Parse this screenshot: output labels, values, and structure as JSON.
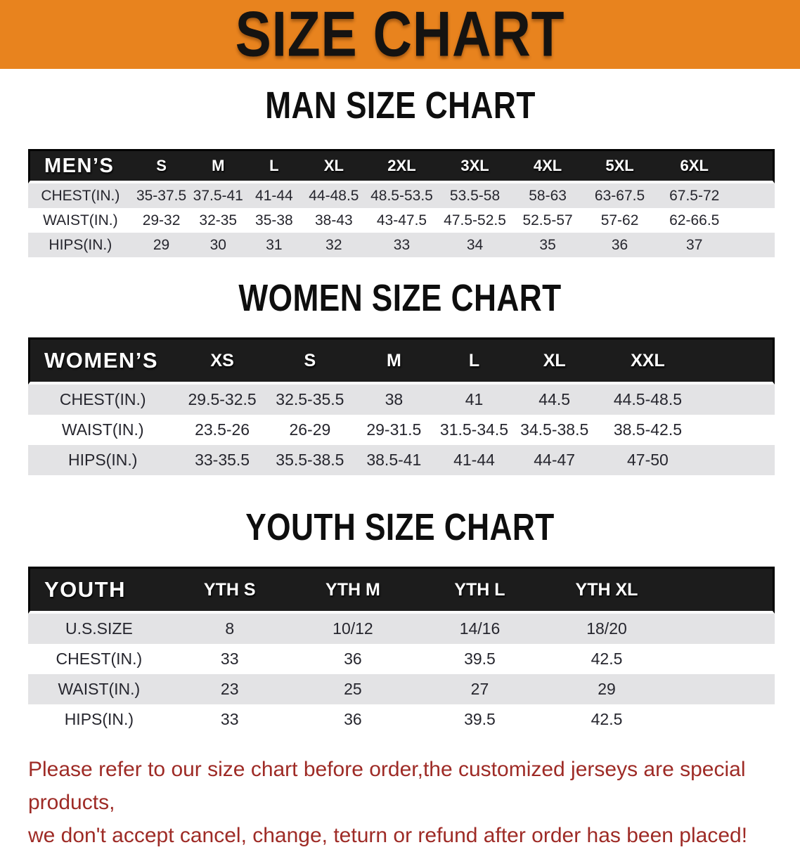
{
  "banner": {
    "title": "SIZE CHART"
  },
  "colors": {
    "banner_bg": "#E8831E",
    "table_header_bg": "#1C1C1C",
    "row_stripe": "#E3E3E5",
    "footer_text": "#9E2B26"
  },
  "sections": [
    {
      "title": "MAN SIZE CHART",
      "table": {
        "corner": "MEN’S",
        "sizes": [
          "S",
          "M",
          "L",
          "XL",
          "2XL",
          "3XL",
          "4XL",
          "5XL",
          "6XL"
        ],
        "rows": [
          {
            "label": "CHEST(IN.)",
            "values": [
              "35-37.5",
              "37.5-41",
              "41-44",
              "44-48.5",
              "48.5-53.5",
              "53.5-58",
              "58-63",
              "63-67.5",
              "67.5-72"
            ]
          },
          {
            "label": "WAIST(IN.)",
            "values": [
              "29-32",
              "32-35",
              "35-38",
              "38-43",
              "43-47.5",
              "47.5-52.5",
              "52.5-57",
              "57-62",
              "62-66.5"
            ]
          },
          {
            "label": "HIPS(IN.)",
            "values": [
              "29",
              "30",
              "31",
              "32",
              "33",
              "34",
              "35",
              "36",
              "37"
            ]
          }
        ]
      }
    },
    {
      "title": "WOMEN SIZE CHART",
      "table": {
        "corner": "WOMEN’S",
        "sizes": [
          "XS",
          "S",
          "M",
          "L",
          "XL",
          "XXL"
        ],
        "rows": [
          {
            "label": "CHEST(IN.)",
            "values": [
              "29.5-32.5",
              "32.5-35.5",
              "38",
              "41",
              "44.5",
              "44.5-48.5"
            ]
          },
          {
            "label": "WAIST(IN.)",
            "values": [
              "23.5-26",
              "26-29",
              "29-31.5",
              "31.5-34.5",
              "34.5-38.5",
              "38.5-42.5"
            ]
          },
          {
            "label": "HIPS(IN.)",
            "values": [
              "33-35.5",
              "35.5-38.5",
              "38.5-41",
              "41-44",
              "44-47",
              "47-50"
            ]
          }
        ]
      }
    },
    {
      "title": "YOUTH SIZE CHART",
      "table": {
        "corner": "YOUTH",
        "sizes": [
          "YTH S",
          "YTH M",
          "YTH L",
          "YTH XL"
        ],
        "rows": [
          {
            "label": "U.S.SIZE",
            "values": [
              "8",
              "10/12",
              "14/16",
              "18/20"
            ]
          },
          {
            "label": "CHEST(IN.)",
            "values": [
              "33",
              "36",
              "39.5",
              "42.5"
            ]
          },
          {
            "label": "WAIST(IN.)",
            "values": [
              "23",
              "25",
              "27",
              "29"
            ]
          },
          {
            "label": "HIPS(IN.)",
            "values": [
              "33",
              "36",
              "39.5",
              "42.5"
            ]
          }
        ]
      }
    }
  ],
  "footer": {
    "line1": "Please refer to our size chart before order,the customized jerseys are special products,",
    "line2": "we don't accept cancel, change, teturn or refund after order has been placed!"
  }
}
